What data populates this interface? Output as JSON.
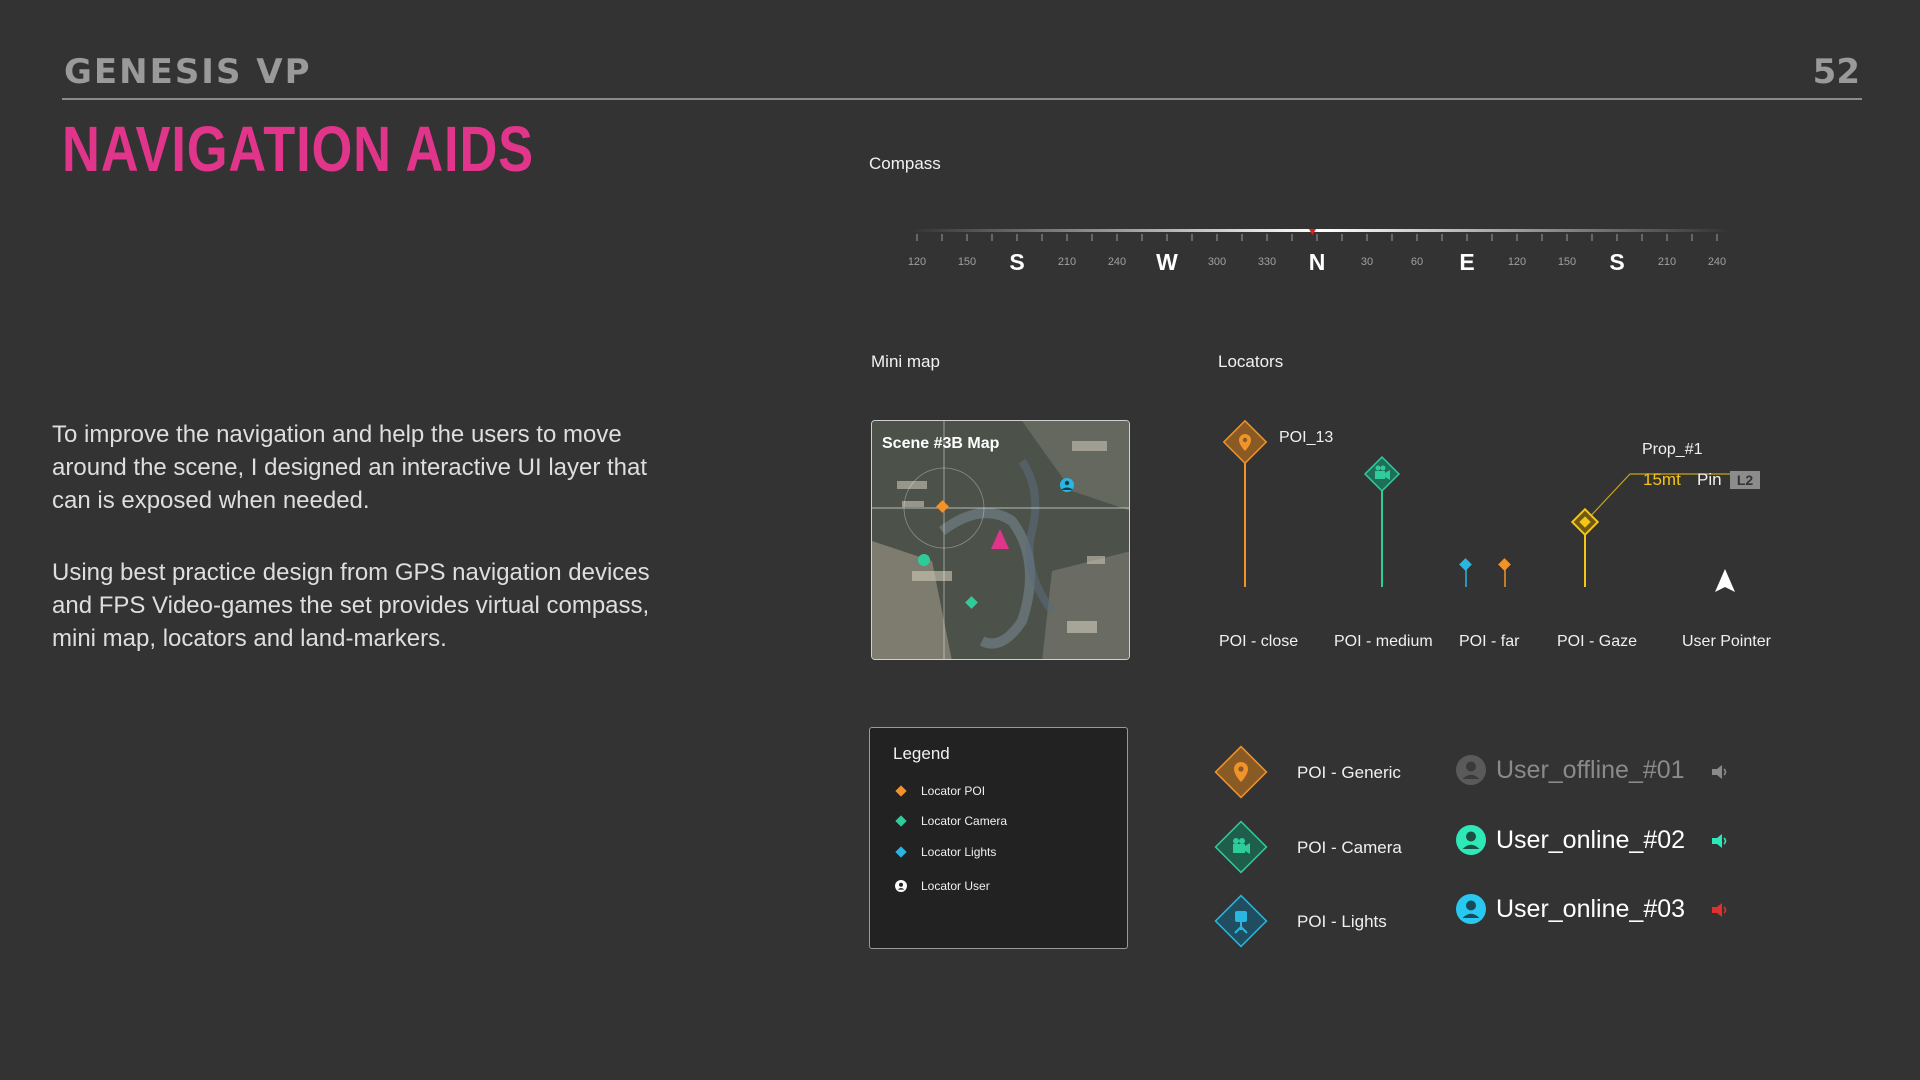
{
  "header": {
    "brand": "GENESIS VP",
    "page_number": "52",
    "title": "NAVIGATION AIDS"
  },
  "description": {
    "paragraph1": "To improve the navigation and help the users to move around the scene, I designed an interactive UI layer that can is exposed when needed.",
    "paragraph2": "Using best practice design from GPS navigation devices and FPS Video-games the set provides virtual compass, mini map, locators and land-markers."
  },
  "compass": {
    "label": "Compass",
    "ticks": [
      "120",
      "150",
      "S",
      "210",
      "240",
      "W",
      "300",
      "330",
      "N",
      "30",
      "60",
      "E",
      "120",
      "150",
      "S",
      "210",
      "240"
    ]
  },
  "minimap": {
    "label": "Mini map",
    "title": "Scene #3B Map"
  },
  "locators": {
    "label": "Locators",
    "poi_name": "POI_13",
    "prop_name": "Prop_#1",
    "prop_distance": "15mt",
    "prop_pin": "Pin",
    "prop_badge": "L2",
    "captions": {
      "close": "POI - close",
      "medium": "POI - medium",
      "far": "POI - far",
      "gaze": "POI - Gaze",
      "user": "User Pointer"
    }
  },
  "legend": {
    "title": "Legend",
    "items": [
      {
        "label": "Locator POI",
        "color": "#f0932b",
        "icon": "diamond-icon"
      },
      {
        "label": "Locator Camera",
        "color": "#2ecc9a",
        "icon": "diamond-icon"
      },
      {
        "label": "Locator Lights",
        "color": "#29b6e0",
        "icon": "diamond-icon"
      },
      {
        "label": "Locator User",
        "color": "#ffffff",
        "icon": "user-circle-icon"
      }
    ]
  },
  "poi_types": [
    {
      "label": "POI - Generic",
      "color": "#f0932b",
      "icon": "location-pin-icon"
    },
    {
      "label": "POI - Camera",
      "color": "#2ecc9a",
      "icon": "video-camera-icon"
    },
    {
      "label": "POI - Lights",
      "color": "#29b6e0",
      "icon": "studio-light-icon"
    }
  ],
  "users": [
    {
      "name": "User_offline_#01",
      "status": "offline",
      "color": "#8a8a8a",
      "speaker_color": "#8a8a8a"
    },
    {
      "name": "User_online_#02",
      "status": "online",
      "color": "#2ee8b8",
      "speaker_color": "#2ee8b8"
    },
    {
      "name": "User_online_#03",
      "status": "online",
      "color": "#29c8f0",
      "speaker_color": "#e03030"
    }
  ],
  "colors": {
    "accent_pink": "#e0358a",
    "poi_orange": "#f0932b",
    "camera_green": "#2ecc9a",
    "lights_blue": "#29b6e0",
    "gaze_yellow": "#f5c518"
  }
}
